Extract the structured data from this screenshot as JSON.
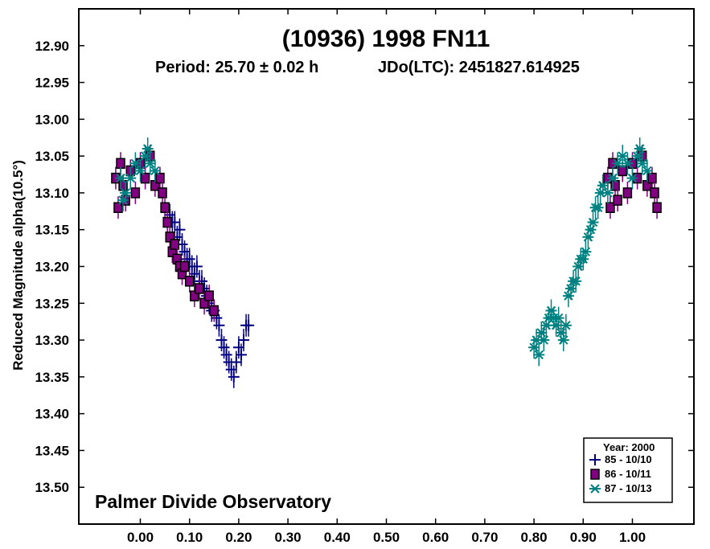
{
  "chart_data": {
    "type": "scatter",
    "title": "(10936) 1998 FN11",
    "period_text": "Period: 25.70 ± 0.02 h",
    "epoch_text": "JDo(LTC): 2451827.614925",
    "ylabel": "Reduced Magnitude alpha(10.5°)",
    "xlabel": "",
    "observatory": "Palmer Divide Observatory",
    "xlim": [
      -0.125,
      1.125
    ],
    "ylim": [
      12.85,
      13.55
    ],
    "y_inverted": true,
    "x_ticks": [
      "0.00",
      "0.10",
      "0.20",
      "0.30",
      "0.40",
      "0.50",
      "0.60",
      "0.70",
      "0.80",
      "0.90",
      "1.00"
    ],
    "x_tick_values": [
      0,
      0.1,
      0.2,
      0.3,
      0.4,
      0.5,
      0.6,
      0.7,
      0.8,
      0.9,
      1.0
    ],
    "y_ticks": [
      "12.90",
      "12.95",
      "13.00",
      "13.05",
      "13.10",
      "13.15",
      "13.20",
      "13.25",
      "13.30",
      "13.35",
      "13.40",
      "13.45",
      "13.50"
    ],
    "y_tick_values": [
      12.9,
      12.95,
      13.0,
      13.05,
      13.1,
      13.15,
      13.2,
      13.25,
      13.3,
      13.35,
      13.4,
      13.45,
      13.5
    ],
    "legend": {
      "title": "Year: 2000",
      "position": "bottom-right",
      "entries": [
        {
          "label": "85 - 10/10",
          "marker": "plus",
          "color": "#000080"
        },
        {
          "label": "86 - 10/11",
          "marker": "square",
          "color": "#800080"
        },
        {
          "label": "87 - 10/13",
          "marker": "asterisk",
          "color": "#008080"
        }
      ]
    },
    "series": [
      {
        "name": "85 - 10/10",
        "marker": "plus",
        "color": "#000080",
        "points": [
          [
            0.06,
            13.13
          ],
          [
            0.065,
            13.14
          ],
          [
            0.07,
            13.14
          ],
          [
            0.075,
            13.16
          ],
          [
            0.08,
            13.15
          ],
          [
            0.085,
            13.17
          ],
          [
            0.09,
            13.18
          ],
          [
            0.095,
            13.19
          ],
          [
            0.1,
            13.19
          ],
          [
            0.105,
            13.2
          ],
          [
            0.11,
            13.21
          ],
          [
            0.115,
            13.2
          ],
          [
            0.12,
            13.22
          ],
          [
            0.125,
            13.22
          ],
          [
            0.13,
            13.23
          ],
          [
            0.135,
            13.24
          ],
          [
            0.14,
            13.25
          ],
          [
            0.145,
            13.26
          ],
          [
            0.15,
            13.26
          ],
          [
            0.155,
            13.27
          ],
          [
            0.16,
            13.28
          ],
          [
            0.165,
            13.3
          ],
          [
            0.17,
            13.31
          ],
          [
            0.175,
            13.32
          ],
          [
            0.18,
            13.33
          ],
          [
            0.185,
            13.34
          ],
          [
            0.19,
            13.35
          ],
          [
            0.195,
            13.33
          ],
          [
            0.2,
            13.31
          ],
          [
            0.205,
            13.32
          ],
          [
            0.21,
            13.3
          ],
          [
            0.215,
            13.28
          ],
          [
            0.22,
            13.28
          ]
        ]
      },
      {
        "name": "86 - 10/11",
        "marker": "square",
        "color": "#800080",
        "points": [
          [
            -0.05,
            13.08
          ],
          [
            -0.045,
            13.12
          ],
          [
            -0.04,
            13.06
          ],
          [
            -0.035,
            13.09
          ],
          [
            -0.03,
            13.11
          ],
          [
            -0.02,
            13.07
          ],
          [
            -0.01,
            13.1
          ],
          [
            0.0,
            13.06
          ],
          [
            0.01,
            13.08
          ],
          [
            0.02,
            13.05
          ],
          [
            0.03,
            13.09
          ],
          [
            0.04,
            13.08
          ],
          [
            0.045,
            13.1
          ],
          [
            0.05,
            13.12
          ],
          [
            0.055,
            13.14
          ],
          [
            0.06,
            13.16
          ],
          [
            0.065,
            13.18
          ],
          [
            0.07,
            13.17
          ],
          [
            0.075,
            13.19
          ],
          [
            0.08,
            13.2
          ],
          [
            0.085,
            13.21
          ],
          [
            0.09,
            13.2
          ],
          [
            0.1,
            13.22
          ],
          [
            0.11,
            13.24
          ],
          [
            0.12,
            13.23
          ],
          [
            0.13,
            13.25
          ],
          [
            0.14,
            13.24
          ],
          [
            0.15,
            13.26
          ],
          [
            0.95,
            13.08
          ],
          [
            0.955,
            13.12
          ],
          [
            0.96,
            13.06
          ],
          [
            0.965,
            13.09
          ],
          [
            0.97,
            13.11
          ],
          [
            0.98,
            13.07
          ],
          [
            0.99,
            13.1
          ],
          [
            1.0,
            13.06
          ],
          [
            1.01,
            13.08
          ],
          [
            1.02,
            13.05
          ],
          [
            1.03,
            13.09
          ],
          [
            1.04,
            13.08
          ],
          [
            1.045,
            13.1
          ],
          [
            1.05,
            13.12
          ]
        ]
      },
      {
        "name": "87 - 10/13",
        "marker": "asterisk",
        "color": "#008080",
        "points": [
          [
            -0.04,
            13.08
          ],
          [
            -0.035,
            13.11
          ],
          [
            -0.03,
            13.1
          ],
          [
            -0.02,
            13.08
          ],
          [
            -0.01,
            13.06
          ],
          [
            0.0,
            13.07
          ],
          [
            0.01,
            13.05
          ],
          [
            0.015,
            13.04
          ],
          [
            0.02,
            13.06
          ],
          [
            0.03,
            13.07
          ],
          [
            0.8,
            13.31
          ],
          [
            0.805,
            13.3
          ],
          [
            0.81,
            13.32
          ],
          [
            0.815,
            13.29
          ],
          [
            0.82,
            13.3
          ],
          [
            0.825,
            13.28
          ],
          [
            0.83,
            13.27
          ],
          [
            0.835,
            13.26
          ],
          [
            0.84,
            13.27
          ],
          [
            0.845,
            13.28
          ],
          [
            0.85,
            13.27
          ],
          [
            0.855,
            13.29
          ],
          [
            0.86,
            13.3
          ],
          [
            0.865,
            13.28
          ],
          [
            0.87,
            13.24
          ],
          [
            0.875,
            13.23
          ],
          [
            0.88,
            13.22
          ],
          [
            0.885,
            13.22
          ],
          [
            0.89,
            13.2
          ],
          [
            0.895,
            13.19
          ],
          [
            0.9,
            13.19
          ],
          [
            0.905,
            13.18
          ],
          [
            0.91,
            13.16
          ],
          [
            0.915,
            13.15
          ],
          [
            0.92,
            13.14
          ],
          [
            0.925,
            13.12
          ],
          [
            0.93,
            13.12
          ],
          [
            0.935,
            13.1
          ],
          [
            0.94,
            13.09
          ],
          [
            0.95,
            13.1
          ],
          [
            0.96,
            13.08
          ],
          [
            0.97,
            13.06
          ],
          [
            0.98,
            13.05
          ],
          [
            0.99,
            13.06
          ],
          [
            1.0,
            13.08
          ],
          [
            1.01,
            13.05
          ],
          [
            1.015,
            13.04
          ],
          [
            1.02,
            13.06
          ],
          [
            1.03,
            13.07
          ]
        ]
      }
    ]
  }
}
